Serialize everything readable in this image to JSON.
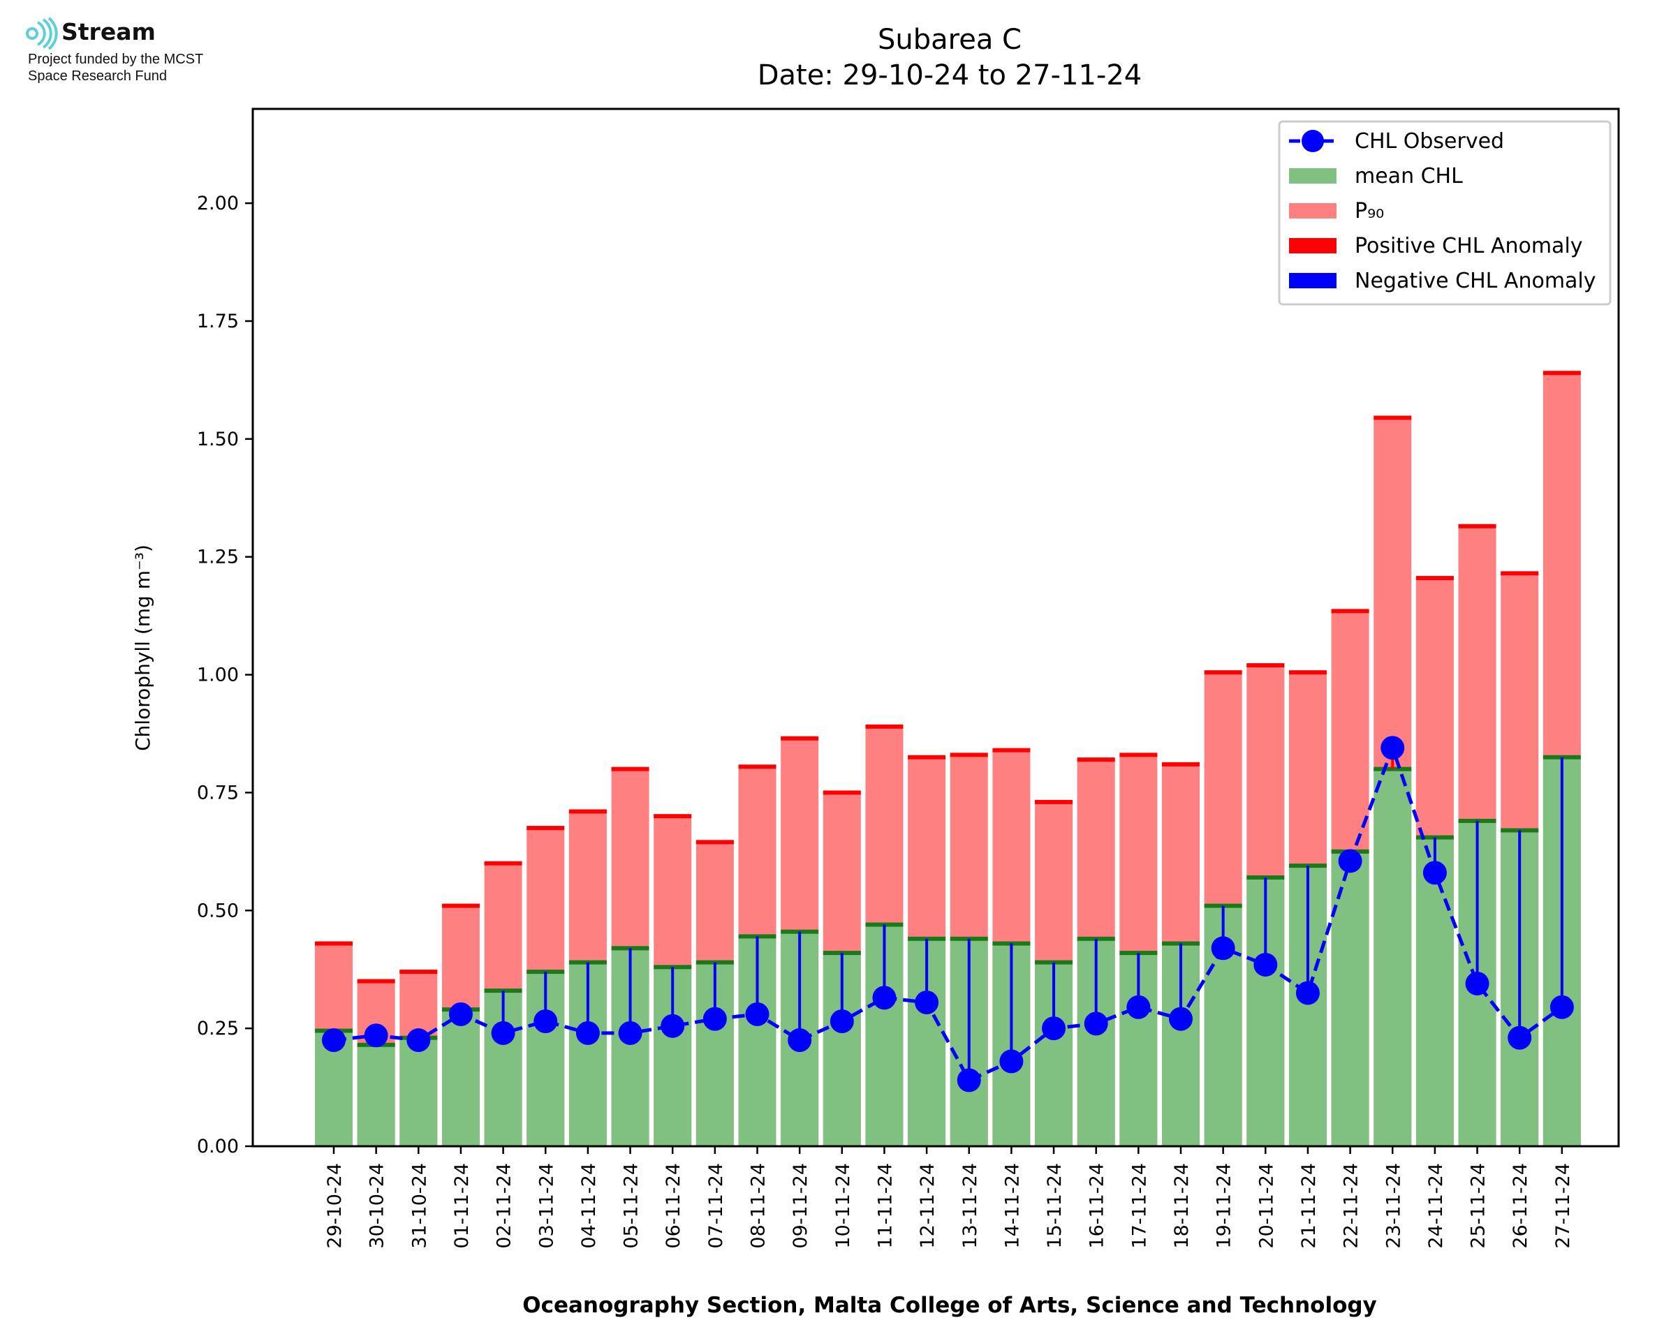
{
  "logo": {
    "name": "Stream",
    "line1": "Project funded by the MCST",
    "line2": "Space Research Fund",
    "color": "#5ecfd2"
  },
  "chart_data": {
    "type": "bar",
    "title": "Subarea C",
    "subtitle": "Date: 29-10-24 to 27-11-24",
    "xlabel": "Oceanography Section, Malta College of Arts, Science and Technology",
    "ylabel": "Chlorophyll (mg m⁻³)",
    "ylim": [
      0,
      2.2
    ],
    "yticks": [
      "0.00",
      "0.25",
      "0.50",
      "0.75",
      "1.00",
      "1.25",
      "1.50",
      "1.75",
      "2.00"
    ],
    "grid": false,
    "legend_position": "top-right",
    "categories": [
      "29-10-24",
      "30-10-24",
      "31-10-24",
      "01-11-24",
      "02-11-24",
      "03-11-24",
      "04-11-24",
      "05-11-24",
      "06-11-24",
      "07-11-24",
      "08-11-24",
      "09-11-24",
      "10-11-24",
      "11-11-24",
      "12-11-24",
      "13-11-24",
      "14-11-24",
      "15-11-24",
      "16-11-24",
      "17-11-24",
      "18-11-24",
      "19-11-24",
      "20-11-24",
      "21-11-24",
      "22-11-24",
      "23-11-24",
      "24-11-24",
      "25-11-24",
      "26-11-24",
      "27-11-24"
    ],
    "series": [
      {
        "name": "mean CHL",
        "color": "#80c080",
        "values": [
          0.245,
          0.215,
          0.23,
          0.29,
          0.33,
          0.37,
          0.39,
          0.42,
          0.38,
          0.39,
          0.445,
          0.455,
          0.41,
          0.47,
          0.44,
          0.44,
          0.43,
          0.39,
          0.44,
          0.41,
          0.43,
          0.51,
          0.57,
          0.595,
          0.625,
          0.8,
          0.655,
          0.69,
          0.67,
          0.825
        ]
      },
      {
        "name": "P₉₀",
        "color": "#ff8080",
        "values": [
          0.43,
          0.35,
          0.37,
          0.51,
          0.6,
          0.675,
          0.71,
          0.8,
          0.7,
          0.645,
          0.805,
          0.865,
          0.75,
          0.89,
          0.825,
          0.83,
          0.84,
          0.73,
          0.82,
          0.83,
          0.81,
          1.005,
          1.02,
          1.005,
          1.135,
          1.545,
          1.205,
          1.315,
          1.215,
          1.64
        ]
      },
      {
        "name": "CHL Observed",
        "color": "#0000ff",
        "values": [
          0.225,
          0.235,
          0.225,
          0.28,
          0.24,
          0.265,
          0.24,
          0.24,
          0.255,
          0.27,
          0.28,
          0.225,
          0.265,
          0.315,
          0.305,
          0.14,
          0.18,
          0.25,
          0.26,
          0.295,
          0.27,
          0.42,
          0.385,
          0.325,
          0.605,
          0.845,
          0.58,
          0.345,
          0.23,
          0.295
        ]
      }
    ],
    "legend": [
      {
        "label": "CHL Observed",
        "color": "#0000ff",
        "kind": "line-marker"
      },
      {
        "label": "mean CHL",
        "color": "#80c080",
        "kind": "patch"
      },
      {
        "label": "P₉₀",
        "color": "#ff8080",
        "kind": "patch"
      },
      {
        "label": "Positive CHL Anomaly",
        "color": "#ff0000",
        "kind": "patch"
      },
      {
        "label": "Negative CHL Anomaly",
        "color": "#0000ff",
        "kind": "patch"
      }
    ]
  }
}
